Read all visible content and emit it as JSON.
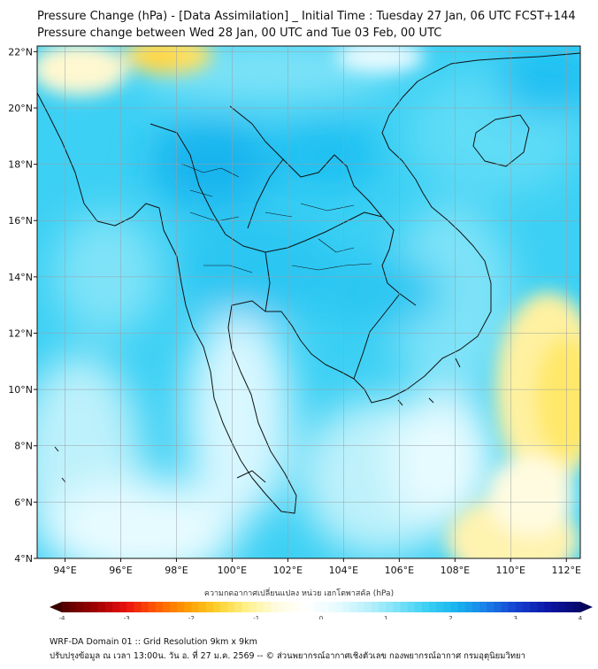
{
  "title_line1": "Pressure Change (hPa) - [Data Assimilation] _ Initial Time : Tuesday 27 Jan, 06 UTC FCST+144",
  "title_line2": "Pressure change between Wed 28 Jan, 00 UTC and Tue 03 Feb, 00 UTC",
  "map": {
    "lon_range": [
      93,
      112.5
    ],
    "lat_range": [
      4,
      22.2
    ],
    "lon_ticks": [
      "94°E",
      "96°E",
      "98°E",
      "100°E",
      "102°E",
      "104°E",
      "106°E",
      "108°E",
      "110°E",
      "112°E"
    ],
    "lon_tick_values": [
      94,
      96,
      98,
      100,
      102,
      104,
      106,
      108,
      110,
      112
    ],
    "lat_ticks": [
      "4°N",
      "6°N",
      "8°N",
      "10°N",
      "12°N",
      "14°N",
      "16°N",
      "18°N",
      "20°N",
      "22°N"
    ],
    "lat_tick_values": [
      4,
      6,
      8,
      10,
      12,
      14,
      16,
      18,
      20,
      22
    ],
    "grid": true,
    "colors": {
      "strong_rise": "#1ec8f0",
      "moderate_rise": "#5fdcf6",
      "weak_rise": "#bdf1fb",
      "near_zero": "#ffffff",
      "weak_fall": "#fff3a0",
      "moderate_fall": "#ffd84a",
      "coast": "#111111"
    }
  },
  "colorbar": {
    "label": "ความกดอากาศเปลี่ยนแปลง หน่วย เฮกโตพาสคัล (hPa)",
    "min": -4,
    "max": 4,
    "ticks": [
      "-4",
      "-3",
      "-2",
      "-1",
      "0",
      "1",
      "2",
      "3",
      "4"
    ],
    "tick_values": [
      -4,
      -3,
      -2,
      -1,
      0,
      1,
      2,
      3,
      4
    ],
    "colors": [
      "#5a0000",
      "#a00000",
      "#e81010",
      "#ff5a00",
      "#ff9a00",
      "#ffcf2a",
      "#fff18a",
      "#fffbe0",
      "#ffffff",
      "#e8fbff",
      "#bdf1fb",
      "#7fe3f8",
      "#3cd0f4",
      "#18b4ee",
      "#1a7fe8",
      "#1540d0",
      "#0c18a8",
      "#080870"
    ]
  },
  "footer_line1": "WRF-DA Domain 01 :: Grid Resolution 9km x 9km",
  "footer_line2": "ปรับปรุงข้อมูล ณ เวลา 13:00น. วัน อ. ที่ 27 ม.ค. 2569 -- © ส่วนพยากรณ์อากาศเชิงตัวเลข กองพยากรณ์อากาศ กรมอุตุนิยมวิทยา"
}
